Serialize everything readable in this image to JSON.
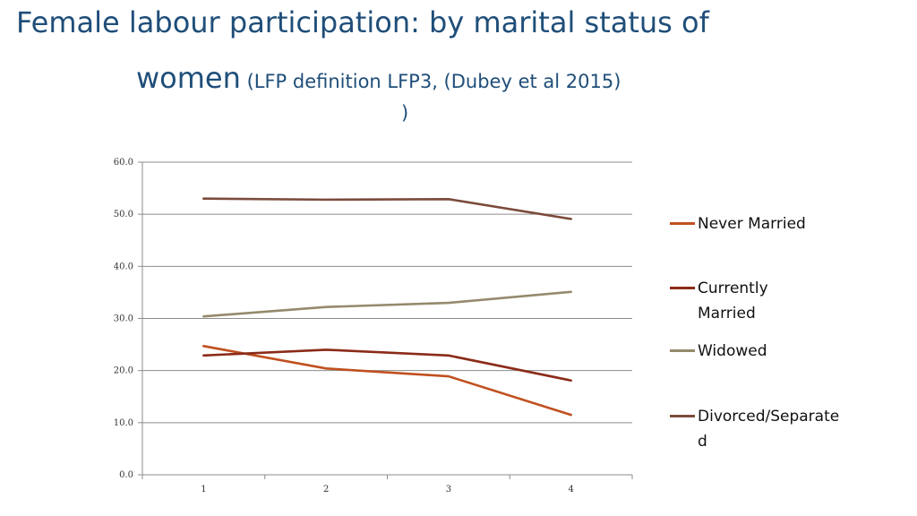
{
  "title": {
    "line1": "Female labour participation: by marital status of",
    "line2_main": "women",
    "line2_note": " (LFP definition LFP3, (Dubey et al 2015)",
    "line3": ")"
  },
  "chart_data": {
    "type": "line",
    "title": "",
    "xlabel": "",
    "ylabel": "",
    "x": [
      "1",
      "2",
      "3",
      "4"
    ],
    "ylim": [
      0,
      60
    ],
    "yticks": [
      "0.0",
      "10.0",
      "20.0",
      "30.0",
      "40.0",
      "50.0",
      "60.0"
    ],
    "grid": true,
    "legend_position": "right",
    "series": [
      {
        "name": "Never Married",
        "color": "#c0501f",
        "values": [
          24.7,
          20.4,
          18.9,
          11.5
        ]
      },
      {
        "name": "Currently Married",
        "color": "#8b2b19",
        "values": [
          22.9,
          24.0,
          22.9,
          18.1
        ]
      },
      {
        "name": "Widowed",
        "color": "#948a6c",
        "values": [
          30.4,
          32.2,
          33.0,
          35.1
        ]
      },
      {
        "name": "Divorced/Separated",
        "color": "#7b4b3c",
        "values": [
          53.0,
          52.8,
          52.9,
          49.1
        ]
      }
    ]
  }
}
